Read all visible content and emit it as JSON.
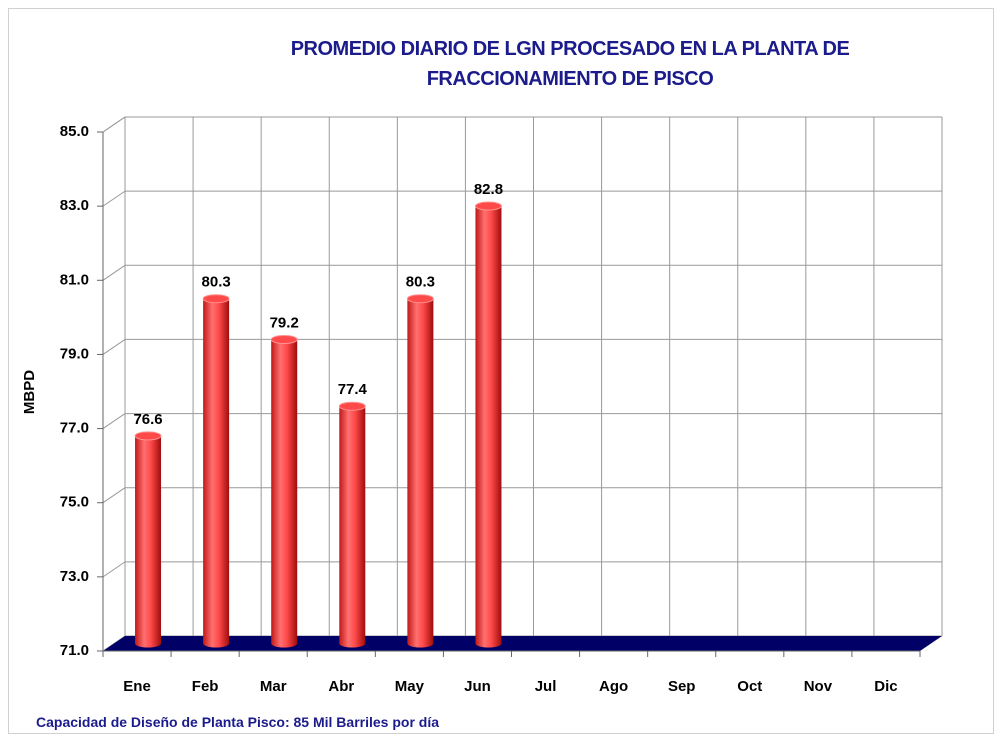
{
  "chart_data": {
    "type": "bar3d",
    "title": "PROMEDIO DIARIO DE LGN PROCESADO EN LA PLANTA DE FRACCIONAMIENTO DE PISCO",
    "ylabel": "MBPD",
    "categories": [
      "Ene",
      "Feb",
      "Mar",
      "Abr",
      "May",
      "Jun",
      "Jul",
      "Ago",
      "Sep",
      "Oct",
      "Nov",
      "Dic"
    ],
    "values": [
      76.6,
      80.3,
      79.2,
      77.4,
      80.3,
      82.8,
      null,
      null,
      null,
      null,
      null,
      null
    ],
    "color": "#ff4a4a",
    "floor_color": "#000066",
    "ylim": [
      71,
      85
    ],
    "yticks": [
      {
        "value": 71,
        "label": "71.0"
      },
      {
        "value": 73,
        "label": "73.0"
      },
      {
        "value": 75,
        "label": "75.0"
      },
      {
        "value": 77,
        "label": "77.0"
      },
      {
        "value": 79,
        "label": "79.0"
      },
      {
        "value": 81,
        "label": "81.0"
      },
      {
        "value": 83,
        "label": "83.0"
      },
      {
        "value": 85,
        "label": "85.0"
      }
    ],
    "grid": true,
    "note": "Capacidad de Diseño de Planta Pisco: 85 Mil Barriles por día"
  }
}
